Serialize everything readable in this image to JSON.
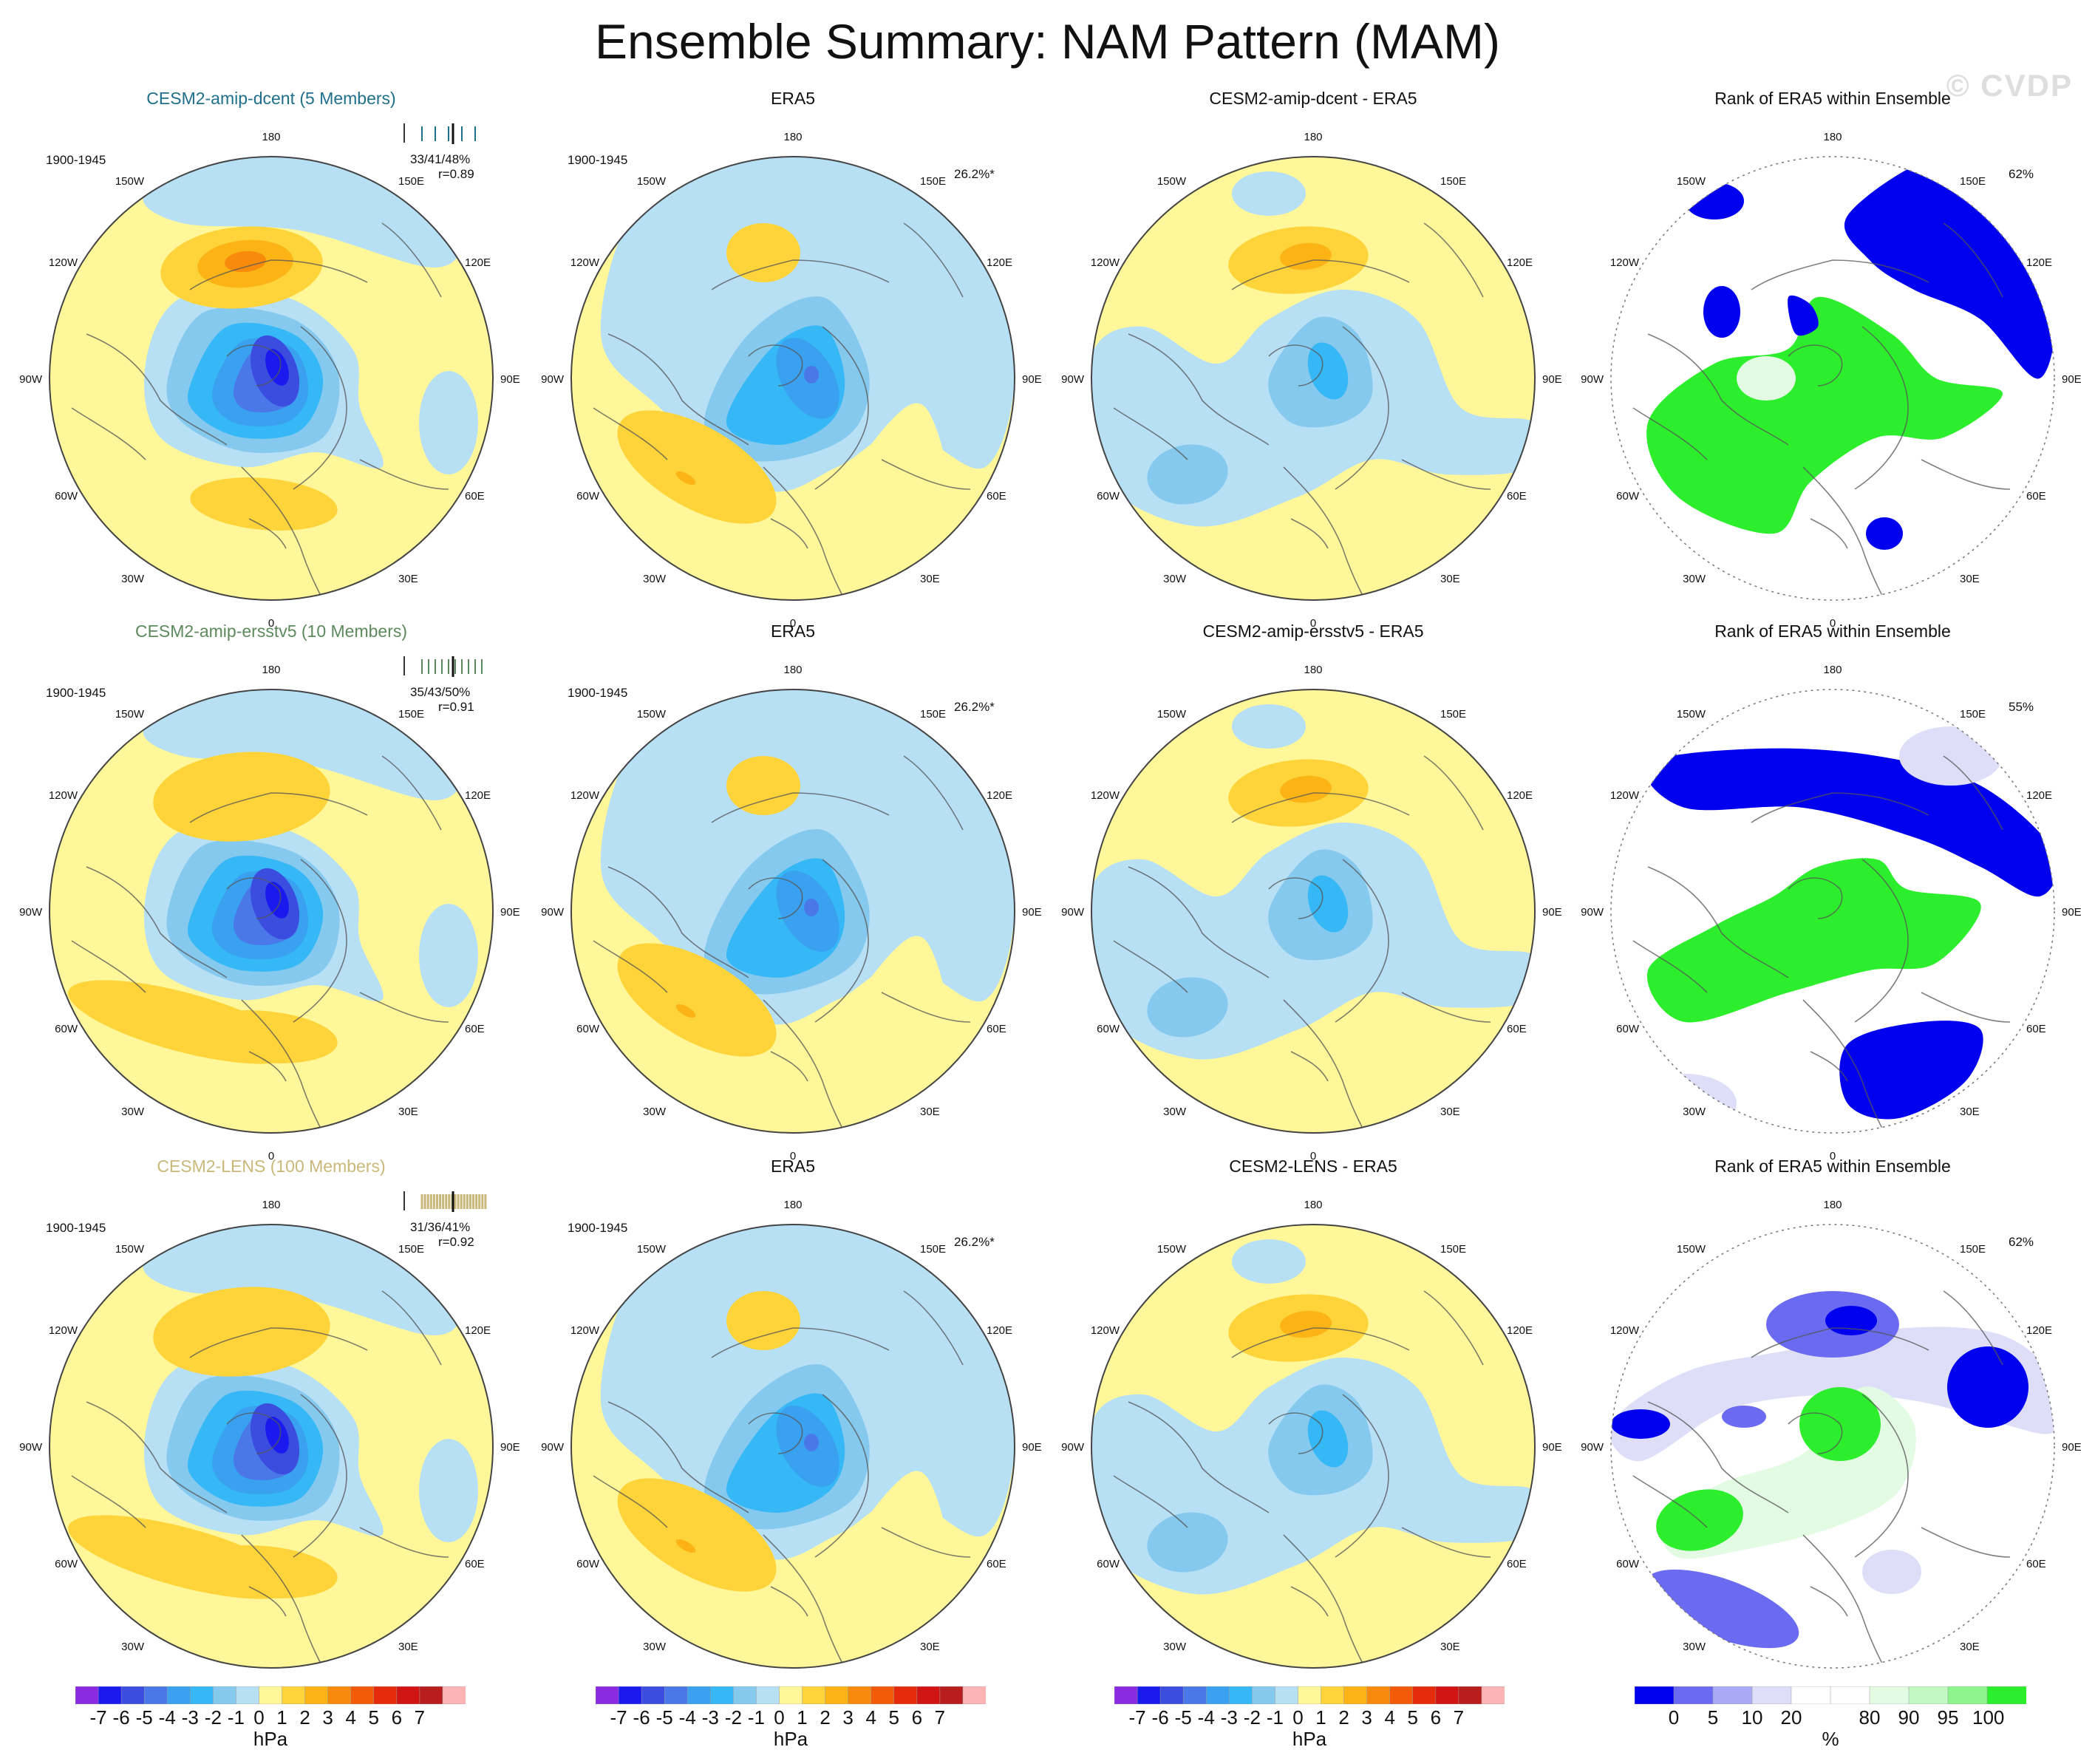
{
  "figure": {
    "title": "Ensemble Summary: NAM Pattern (MAM)",
    "watermark": "© CVDP"
  },
  "rows": [
    {
      "model_title": "CESM2-amip-dcent (5 Members)",
      "model_color": "#1f6f8b",
      "ensemble_stats": "33/41/48%",
      "correlation": "r=0.89",
      "diff_title": "CESM2-amip-dcent - ERA5",
      "rank_pct": "62%"
    },
    {
      "model_title": "CESM2-amip-ersstv5 (10 Members)",
      "model_color": "#5c8a5c",
      "ensemble_stats": "35/43/50%",
      "correlation": "r=0.91",
      "diff_title": "CESM2-amip-ersstv5 - ERA5",
      "rank_pct": "55%"
    },
    {
      "model_title": "CESM2-LENS (100 Members)",
      "model_color": "#c9b87a",
      "ensemble_stats": "31/36/41%",
      "correlation": "r=0.92",
      "diff_title": "CESM2-LENS - ERA5",
      "rank_pct": "62%"
    }
  ],
  "common": {
    "period": "1900-1945",
    "obs_title": "ERA5",
    "obs_pct": "26.2%*",
    "rank_title": "Rank of ERA5 within Ensemble"
  },
  "longitude_labels": {
    "top": "180",
    "bottom": "0",
    "upper_left": "150W",
    "upper_right": "150E",
    "mid_upper_left": "120W",
    "mid_upper_right": "120E",
    "left": "90W",
    "right": "90E",
    "mid_lower_left": "60W",
    "mid_lower_right": "60E",
    "lower_left": "30W",
    "lower_right": "30E"
  },
  "colorbars": {
    "hpa": {
      "unit": "hPa",
      "colors": [
        "#8a2be2",
        "#1a1aee",
        "#3a4ddf",
        "#4a78e8",
        "#3aa0f0",
        "#35b8f5",
        "#86c9ee",
        "#b8e0f5",
        "#fff799",
        "#fed43a",
        "#fcb316",
        "#f88b0c",
        "#f35a0a",
        "#e52b0c",
        "#d11414",
        "#b81c1c",
        "#fcb3b3"
      ],
      "ticks": [
        "-7",
        "-6",
        "-5",
        "-4",
        "-3",
        "-2",
        "-1",
        "0",
        "1",
        "2",
        "3",
        "4",
        "5",
        "6",
        "7"
      ]
    },
    "rank": {
      "unit": "%",
      "colors": [
        "#0000ee",
        "#6b6bf2",
        "#a9a9f5",
        "#dedef9",
        "#ffffff",
        "#ffffff",
        "#e3fbe3",
        "#c3f8c3",
        "#8ef58e",
        "#2dee2d"
      ],
      "ticks": [
        "0",
        "5",
        "10",
        "20",
        "80",
        "90",
        "95",
        "100"
      ]
    }
  },
  "chart_data": {
    "type": "map",
    "description_free": true,
    "panels_per_row": [
      "model NAM pattern",
      "ERA5 NAM pattern",
      "model minus ERA5",
      "rank of ERA5 within ensemble"
    ],
    "pattern_unit": "hPa",
    "pattern_contour_levels": [
      -7,
      -6,
      -5,
      -4,
      -3,
      -2,
      -1,
      0,
      1,
      2,
      3,
      4,
      5,
      6,
      7
    ],
    "rank_levels": [
      0,
      5,
      10,
      20,
      80,
      90,
      95,
      100
    ],
    "rank_unit": "%",
    "projection": "north polar stereographic",
    "spatial_pct": "26.2%*",
    "rank_area_pct": [
      "62%",
      "55%",
      "62%"
    ],
    "pattern_stats": [
      "33/41/48%",
      "35/43/50%",
      "31/36/41%"
    ],
    "pattern_correlation": [
      "r=0.89",
      "r=0.91",
      "r=0.92"
    ]
  }
}
